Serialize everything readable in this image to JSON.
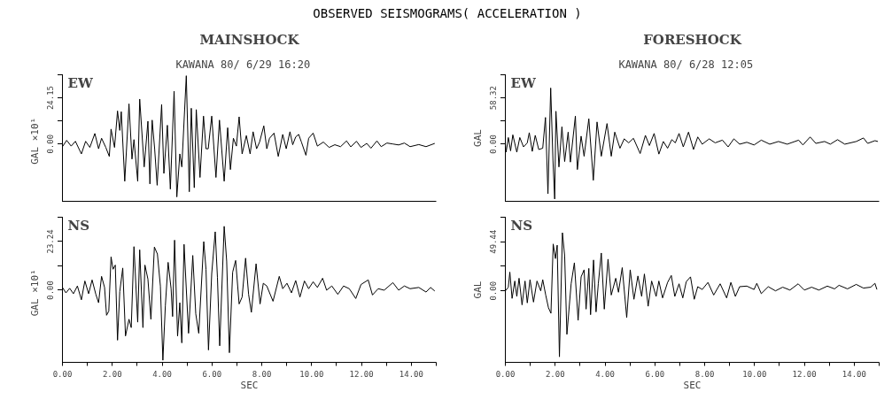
{
  "chart_data": [
    {
      "type": "line",
      "title": "MAINSHOCK",
      "subtitle": "KAWANA   80/ 6/29 16:20",
      "ylabel": "GAL  ×10¹",
      "annotations": [
        "EW",
        "OBSERVED SEISMOGRAMS( ACCELERATION )"
      ],
      "tick_labels": "y",
      "xlim": [
        0,
        15
      ],
      "ylim": [
        -30,
        36.225
      ],
      "yticks": [
        {
          "value": 0,
          "label": "0.00"
        },
        {
          "value": 12.075,
          "label": null
        },
        {
          "value": 24.15,
          "label": "24.15"
        },
        {
          "value": 36.225,
          "label": null
        }
      ],
      "series": [
        {
          "color": "#000000",
          "x": [
            0,
            0.17,
            0.35,
            0.52,
            0.76,
            0.93,
            1.1,
            1.3,
            1.45,
            1.57,
            1.74,
            1.88,
            1.95,
            2.09,
            2.21,
            2.3,
            2.36,
            2.5,
            2.67,
            2.79,
            2.87,
            3.02,
            3.1,
            3.28,
            3.43,
            3.51,
            3.6,
            3.7,
            3.8,
            3.98,
            4.07,
            4.21,
            4.33,
            4.48,
            4.59,
            4.71,
            4.79,
            4.97,
            5.09,
            5.17,
            5.29,
            5.37,
            5.52,
            5.66,
            5.76,
            5.85,
            5.99,
            6.16,
            6.3,
            6.49,
            6.63,
            6.74,
            6.86,
            6.98,
            7.09,
            7.21,
            7.38,
            7.53,
            7.65,
            7.79,
            7.91,
            8.08,
            8.2,
            8.31,
            8.49,
            8.66,
            8.84,
            8.98,
            9.13,
            9.24,
            9.36,
            9.48,
            9.59,
            9.77,
            9.88,
            10.06,
            10.23,
            10.47,
            10.7,
            10.93,
            11.16,
            11.4,
            11.57,
            11.8,
            11.98,
            12.21,
            12.38,
            12.62,
            12.79,
            13.02,
            13.26,
            13.49,
            13.72,
            13.95,
            14.3,
            14.59,
            14.94
          ],
          "values": [
            -1.4,
            1.9,
            -1.1,
            1.4,
            -5.2,
            1.4,
            -1.8,
            5.5,
            -2.5,
            3.0,
            -1.8,
            -6.5,
            7.8,
            -1.8,
            17.3,
            7.1,
            16.9,
            -19.5,
            21.0,
            -7.9,
            2.3,
            -19.5,
            23.5,
            -12.0,
            11.9,
            -20.9,
            12.5,
            -2.5,
            -21.6,
            20.7,
            -15.4,
            9.8,
            -23.6,
            27.6,
            -27.7,
            -5.2,
            -12.0,
            35.7,
            -25.0,
            18.7,
            -22.9,
            18.0,
            -17.5,
            14.6,
            -2.5,
            -2.5,
            14.6,
            -17.5,
            12.5,
            -19.5,
            8.5,
            -13.4,
            3.0,
            -1.1,
            14.2,
            -5.2,
            4.4,
            -5.2,
            6.4,
            -2.5,
            1.0,
            9.5,
            -2.5,
            3.0,
            5.7,
            -6.5,
            5.0,
            -2.5,
            6.4,
            -0.4,
            3.7,
            5.0,
            1.0,
            -5.9,
            3.0,
            5.7,
            -1.1,
            1.0,
            -1.8,
            -0.4,
            -1.4,
            1.6,
            -1.5,
            1.4,
            -1.8,
            0.3,
            -2.2,
            1.6,
            -1.4,
            0.5,
            0.0,
            -0.5,
            0.5,
            -1.4,
            -0.3,
            -1.4,
            0.3
          ]
        }
      ]
    },
    {
      "type": "line",
      "title": "FORESHOCK",
      "subtitle": "KAWANA   80/ 6/28 12:05",
      "ylabel": "GAL",
      "annotations": [
        "EW"
      ],
      "tick_labels": "y",
      "xlim": [
        0,
        15
      ],
      "ylim": [
        -72,
        87.48
      ],
      "yticks": [
        {
          "value": 0,
          "label": "0.00"
        },
        {
          "value": 29.16,
          "label": null
        },
        {
          "value": 58.32,
          "label": "58.32"
        },
        {
          "value": 87.48,
          "label": null
        }
      ],
      "series": [
        {
          "color": "#000000",
          "x": [
            0,
            0.03,
            0.12,
            0.21,
            0.3,
            0.46,
            0.58,
            0.73,
            0.88,
            0.96,
            1.08,
            1.2,
            1.34,
            1.5,
            1.61,
            1.71,
            1.82,
            1.91,
            1.98,
            2.03,
            2.15,
            2.27,
            2.38,
            2.52,
            2.61,
            2.81,
            2.89,
            3.04,
            3.16,
            3.35,
            3.53,
            3.68,
            3.85,
            4.08,
            4.25,
            4.39,
            4.6,
            4.77,
            4.95,
            5.14,
            5.41,
            5.62,
            5.78,
            5.97,
            6.16,
            6.34,
            6.51,
            6.68,
            6.82,
            6.97,
            7.14,
            7.35,
            7.55,
            7.72,
            7.9,
            8.18,
            8.42,
            8.71,
            8.94,
            9.17,
            9.4,
            9.69,
            9.98,
            10.27,
            10.61,
            10.96,
            11.31,
            11.77,
            11.94,
            12.23,
            12.46,
            12.81,
            13.04,
            13.33,
            13.62,
            14.08,
            14.37,
            14.54,
            14.83,
            14.95
          ],
          "values": [
            0,
            -10.1,
            8.4,
            -8.4,
            11.8,
            -10.1,
            8.4,
            -3.4,
            1.7,
            14.5,
            -9.1,
            11.1,
            -6.7,
            -5.1,
            33.7,
            -62.4,
            70.8,
            -20.2,
            -69.1,
            41.5,
            -28.7,
            21.9,
            -21.9,
            15.2,
            -22.6,
            35.4,
            -32.0,
            10.1,
            -15.2,
            32.0,
            -45.5,
            28.0,
            -15.2,
            26.0,
            -15.2,
            15.2,
            -5.1,
            6.7,
            1.7,
            7.4,
            -11.8,
            11.1,
            -1.7,
            13.5,
            -12.5,
            3.4,
            -5.1,
            5.7,
            1.7,
            13.5,
            -3.4,
            15.2,
            -6.7,
            9.1,
            0,
            6.7,
            1.7,
            5.1,
            -3.4,
            6.7,
            0,
            2.4,
            -1.0,
            5.1,
            0,
            3.4,
            0,
            5.1,
            -1.0,
            9.1,
            1.0,
            3.4,
            0,
            5.7,
            0,
            3.4,
            7.8,
            1.0,
            4.4,
            3.4
          ]
        }
      ]
    },
    {
      "type": "line",
      "xlabel": "SEC",
      "ylabel": "GAL  ×10¹",
      "annotations": [
        "NS"
      ],
      "xlim": [
        0,
        15
      ],
      "xticks": [
        {
          "value": 0,
          "label": "0.00"
        },
        {
          "value": 1,
          "label": null
        },
        {
          "value": 2,
          "label": "2.00"
        },
        {
          "value": 3,
          "label": null
        },
        {
          "value": 4,
          "label": "4.00"
        },
        {
          "value": 5,
          "label": null
        },
        {
          "value": 6,
          "label": "6.00"
        },
        {
          "value": 7,
          "label": null
        },
        {
          "value": 8,
          "label": "8.00"
        },
        {
          "value": 9,
          "label": null
        },
        {
          "value": 10,
          "label": "10.00"
        },
        {
          "value": 11,
          "label": null
        },
        {
          "value": 12,
          "label": "12.00"
        },
        {
          "value": 13,
          "label": null
        },
        {
          "value": 14,
          "label": "14.00"
        },
        {
          "value": 15,
          "label": null
        }
      ],
      "ylim": [
        -34.5,
        34.86
      ],
      "yticks": [
        {
          "value": 0,
          "label": "0.00"
        },
        {
          "value": 11.62,
          "label": null
        },
        {
          "value": 23.24,
          "label": "23.24"
        },
        {
          "value": 34.86,
          "label": null
        }
      ],
      "series": [
        {
          "color": "#000000",
          "x": [
            0,
            0.14,
            0.29,
            0.44,
            0.6,
            0.76,
            0.9,
            1.05,
            1.19,
            1.34,
            1.45,
            1.57,
            1.69,
            1.77,
            1.86,
            1.95,
            2.03,
            2.12,
            2.21,
            2.3,
            2.42,
            2.53,
            2.67,
            2.76,
            2.87,
            3.02,
            3.1,
            3.23,
            3.31,
            3.43,
            3.55,
            3.69,
            3.81,
            3.93,
            4.03,
            4.13,
            4.24,
            4.36,
            4.42,
            4.5,
            4.62,
            4.71,
            4.79,
            4.88,
            5.06,
            5.23,
            5.35,
            5.47,
            5.67,
            5.76,
            5.86,
            5.99,
            6.13,
            6.22,
            6.31,
            6.49,
            6.59,
            6.7,
            6.83,
            6.95,
            7.09,
            7.21,
            7.35,
            7.47,
            7.58,
            7.77,
            7.93,
            8.06,
            8.2,
            8.45,
            8.7,
            8.84,
            9.01,
            9.19,
            9.36,
            9.53,
            9.71,
            9.88,
            10.06,
            10.23,
            10.44,
            10.6,
            10.81,
            11.05,
            11.28,
            11.51,
            11.77,
            11.98,
            12.27,
            12.44,
            12.67,
            12.91,
            13.26,
            13.49,
            13.72,
            13.95,
            14.3,
            14.59,
            14.77,
            14.94
          ],
          "values": [
            1.3,
            -1.3,
            0.9,
            -1.7,
            2.0,
            -4.6,
            4.4,
            -1.7,
            4.9,
            -2.0,
            -6.0,
            6.6,
            1.3,
            -12.0,
            -10.0,
            15.9,
            10.0,
            12.0,
            -23.9,
            -0.7,
            10.6,
            -21.9,
            -13.9,
            -17.9,
            20.8,
            -15.3,
            19.3,
            -17.9,
            12.0,
            5.3,
            -13.9,
            20.6,
            17.3,
            2.0,
            -33.5,
            -7.3,
            13.3,
            0.7,
            -12.6,
            23.9,
            -21.9,
            -6.0,
            -25.2,
            21.9,
            -20.6,
            16.6,
            -11.3,
            -20.6,
            23.2,
            10.0,
            -28.6,
            8.0,
            27.9,
            6.0,
            -26.6,
            30.5,
            13.9,
            -29.9,
            8.6,
            14.2,
            -6.6,
            -3.3,
            15.3,
            -2.0,
            -10.6,
            12.6,
            -6.6,
            3.3,
            2.0,
            -5.3,
            6.6,
            0.7,
            3.3,
            -1.3,
            4.6,
            -3.3,
            4.4,
            0.7,
            4.0,
            1.3,
            5.7,
            0,
            2.0,
            -2.0,
            2.0,
            0.7,
            -4.0,
            2.7,
            4.9,
            -2.3,
            0.7,
            0,
            3.6,
            0,
            2.0,
            0.7,
            1.3,
            -0.9,
            1.3,
            -0.4
          ]
        }
      ]
    },
    {
      "type": "line",
      "xlabel": "SEC",
      "ylabel": "GAL",
      "annotations": [
        "NS"
      ],
      "xlim": [
        0,
        15
      ],
      "xticks": [
        {
          "value": 0,
          "label": "0.00"
        },
        {
          "value": 1,
          "label": null
        },
        {
          "value": 2,
          "label": "2.00"
        },
        {
          "value": 3,
          "label": null
        },
        {
          "value": 4,
          "label": "4.00"
        },
        {
          "value": 5,
          "label": null
        },
        {
          "value": 6,
          "label": "6.00"
        },
        {
          "value": 7,
          "label": null
        },
        {
          "value": 8,
          "label": "8.00"
        },
        {
          "value": 9,
          "label": null
        },
        {
          "value": 10,
          "label": "10.00"
        },
        {
          "value": 11,
          "label": null
        },
        {
          "value": 12,
          "label": "12.00"
        },
        {
          "value": 13,
          "label": null
        },
        {
          "value": 14,
          "label": "14.00"
        },
        {
          "value": 15,
          "label": null
        }
      ],
      "ylim": [
        -72,
        74.16
      ],
      "yticks": [
        {
          "value": 0,
          "label": "0.00"
        },
        {
          "value": 24.72,
          "label": null
        },
        {
          "value": 49.44,
          "label": "49.44"
        },
        {
          "value": 74.16,
          "label": null
        }
      ],
      "series": [
        {
          "color": "#000000",
          "x": [
            0,
            0.12,
            0.18,
            0.27,
            0.38,
            0.46,
            0.55,
            0.67,
            0.79,
            0.88,
            0.99,
            1.13,
            1.27,
            1.42,
            1.5,
            1.62,
            1.73,
            1.83,
            1.92,
            2.01,
            2.08,
            2.17,
            2.29,
            2.38,
            2.47,
            2.64,
            2.77,
            2.92,
            3.04,
            3.16,
            3.24,
            3.35,
            3.42,
            3.54,
            3.64,
            3.73,
            3.85,
            3.97,
            4.12,
            4.25,
            4.43,
            4.54,
            4.69,
            4.87,
            5.01,
            5.16,
            5.32,
            5.47,
            5.58,
            5.73,
            5.87,
            6.05,
            6.16,
            6.31,
            6.51,
            6.66,
            6.8,
            6.97,
            7.12,
            7.26,
            7.43,
            7.58,
            7.72,
            7.9,
            8.13,
            8.36,
            8.62,
            8.88,
            9.05,
            9.23,
            9.4,
            9.69,
            9.98,
            10.09,
            10.27,
            10.55,
            10.84,
            11.13,
            11.42,
            11.75,
            12.0,
            12.29,
            12.58,
            12.92,
            13.21,
            13.39,
            13.73,
            14.08,
            14.37,
            14.66,
            14.83,
            14.91
          ],
          "values": [
            0,
            3.7,
            18.9,
            -7.6,
            9.9,
            -5.6,
            12.7,
            -14.1,
            9.9,
            -12.1,
            11.3,
            -11.3,
            9.9,
            0,
            11.3,
            -4.2,
            -17.0,
            -22.6,
            47.2,
            32.5,
            46.0,
            -66.4,
            58.5,
            35.3,
            -43.8,
            7.1,
            28.3,
            -29.7,
            14.1,
            21.2,
            -18.4,
            22.6,
            -24.0,
            31.1,
            -21.2,
            7.1,
            38.1,
            -18.4,
            31.9,
            -4.2,
            12.7,
            -1.4,
            23.4,
            -26.8,
            21.2,
            -8.5,
            15.0,
            -5.6,
            17.0,
            -15.5,
            9.9,
            -5.6,
            9.9,
            -7.1,
            8.5,
            15.5,
            -5.6,
            7.1,
            -7.1,
            9.3,
            14.1,
            -8.5,
            4.2,
            1.4,
            8.5,
            -4.2,
            7.1,
            -7.1,
            8.5,
            -5.6,
            4.2,
            4.8,
            1.4,
            7.6,
            -2.8,
            4.2,
            0,
            3.7,
            0.8,
            7.1,
            0.8,
            3.7,
            0.8,
            4.8,
            2.0,
            5.6,
            2.0,
            6.5,
            2.8,
            3.7,
            7.6,
            1.4
          ]
        }
      ]
    }
  ]
}
